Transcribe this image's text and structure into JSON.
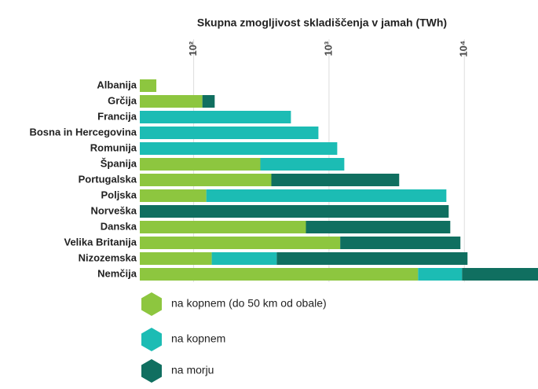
{
  "chart_data": {
    "type": "bar",
    "orientation": "horizontal",
    "stacked": true,
    "log_scale": true,
    "grid": true,
    "title": "Skupna zmogljivost skladiščenja v jamah (TWh)",
    "categories": [
      "Albanija",
      "Grčija",
      "Francija",
      "Bosna in Hercegovina",
      "Romunija",
      "Španija",
      "Portugalska",
      "Poljska",
      "Norveška",
      "Danska",
      "Velika Britanija",
      "Nizozemska",
      "Nemčija"
    ],
    "series": [
      {
        "name": "na kopnem (do 50 km od obale)",
        "color": "#8dc63f",
        "values": [
          53,
          116,
          null,
          null,
          null,
          311,
          375,
          124,
          null,
          675,
          1210,
          136,
          4550
        ]
      },
      {
        "name": "na kopnem",
        "color": "#1cbcb4",
        "values": [
          null,
          null,
          523,
          835,
          1150,
          986,
          null,
          7240,
          null,
          null,
          null,
          275,
          5070
        ]
      },
      {
        "name": "na morju",
        "color": "#106f60",
        "values": [
          null,
          27,
          null,
          null,
          null,
          null,
          2925,
          null,
          7660,
          7195,
          8140,
          10140,
          25400
        ]
      }
    ],
    "xlim": [
      40,
      35000
    ],
    "xticks": [
      {
        "value": 100,
        "label": "10²"
      },
      {
        "value": 1000,
        "label": "10³"
      },
      {
        "value": 10000,
        "label": "10⁴"
      }
    ]
  }
}
